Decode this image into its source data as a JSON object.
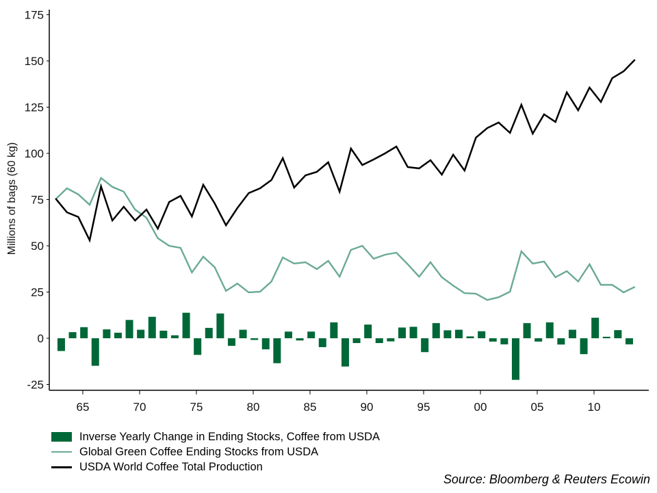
{
  "chart_data": {
    "type": "bar+line",
    "title": "",
    "xlabel": "",
    "ylabel": "Millions of bags (60 kg)",
    "ylim": [
      -30,
      177
    ],
    "yticks": [
      175,
      150,
      125,
      100,
      75,
      50,
      25,
      0,
      -25
    ],
    "ytick_labels": [
      "175",
      "150",
      "125",
      "100",
      "75",
      "50",
      "25",
      "0",
      "-25"
    ],
    "xlim": [
      1962,
      2015.1
    ],
    "xticks": [
      1965,
      1970,
      1975,
      1980,
      1985,
      1990,
      1995,
      2000,
      2005,
      2010
    ],
    "xtick_labels": [
      "65",
      "70",
      "75",
      "80",
      "85",
      "90",
      "95",
      "00",
      "05",
      "10"
    ],
    "grid": false,
    "legend_position": "bottom-left",
    "x": [
      1962.6,
      1963.6,
      1964.6,
      1965.6,
      1966.6,
      1967.6,
      1968.6,
      1969.6,
      1970.6,
      1971.6,
      1972.6,
      1973.6,
      1974.6,
      1975.6,
      1976.6,
      1977.6,
      1978.6,
      1979.6,
      1980.6,
      1981.6,
      1982.6,
      1983.6,
      1984.6,
      1985.6,
      1986.6,
      1987.6,
      1988.6,
      1989.6,
      1990.6,
      1991.6,
      1992.6,
      1993.6,
      1994.6,
      1995.6,
      1996.6,
      1997.6,
      1998.6,
      1999.6,
      2000.6,
      2001.6,
      2002.6,
      2003.6,
      2004.6,
      2005.6,
      2006.6,
      2007.6,
      2008.6,
      2009.6,
      2010.6,
      2011.6,
      2012.6,
      2013.6
    ],
    "series": [
      {
        "name": "Inverse Yearly Change in Ending Stocks, Coffee from USDA",
        "kind": "bar",
        "color": "#006838",
        "x_offset": 0.5,
        "values": [
          -6.9,
          3.3,
          6.0,
          -14.9,
          4.8,
          3.0,
          9.9,
          4.6,
          11.6,
          4.1,
          1.6,
          13.8,
          -9.0,
          5.6,
          13.4,
          -4.1,
          4.6,
          -0.9,
          -6.0,
          -13.5,
          3.6,
          -1.2,
          3.6,
          -4.8,
          8.6,
          -15.3,
          -2.6,
          7.4,
          -2.6,
          -1.7,
          5.8,
          6.2,
          -7.5,
          8.2,
          4.3,
          4.6,
          1.0,
          3.8,
          -1.8,
          -3.3,
          -22.5,
          8.2,
          -1.8,
          8.6,
          -3.4,
          4.6,
          -8.6,
          11.1,
          0.8,
          4.4,
          -3.3,
          0.0
        ]
      },
      {
        "name": "Global Green Coffee Ending Stocks from USDA",
        "kind": "line",
        "color": "#6aaa92",
        "values": [
          75.2,
          81.1,
          77.8,
          72.2,
          86.7,
          81.9,
          79.3,
          69.6,
          65.2,
          54.1,
          50.0,
          48.9,
          35.6,
          44.1,
          38.5,
          25.6,
          29.6,
          24.8,
          25.2,
          30.7,
          43.7,
          40.4,
          41.1,
          37.4,
          41.9,
          33.3,
          47.8,
          50.0,
          43.0,
          45.2,
          46.3,
          40.0,
          33.3,
          41.1,
          33.0,
          28.5,
          24.4,
          24.1,
          20.7,
          22.2,
          25.2,
          47.0,
          40.4,
          41.5,
          33.0,
          36.3,
          30.7,
          40.0,
          28.9,
          28.9,
          24.8,
          27.8
        ]
      },
      {
        "name": "USDA World Coffee Total Production",
        "kind": "line",
        "color": "#000000",
        "values": [
          75.6,
          68.1,
          65.6,
          53.0,
          82.2,
          63.7,
          71.1,
          63.7,
          69.6,
          59.3,
          73.7,
          77.0,
          65.9,
          83.0,
          73.0,
          61.1,
          70.4,
          78.5,
          81.1,
          85.6,
          97.4,
          81.5,
          88.1,
          90.0,
          95.2,
          79.3,
          102.6,
          93.7,
          96.7,
          100.0,
          103.7,
          92.6,
          91.9,
          96.3,
          88.5,
          99.3,
          90.7,
          108.5,
          113.7,
          116.7,
          111.1,
          126.3,
          110.7,
          121.1,
          117.0,
          133.0,
          123.3,
          135.6,
          127.8,
          140.7,
          144.4,
          150.7
        ]
      }
    ],
    "source_note": "Source: Bloomberg & Reuters Ecowin"
  },
  "legend": {
    "items": [
      {
        "label": "Inverse Yearly Change in Ending Stocks, Coffee from USDA",
        "color": "#006838",
        "kind": "bar"
      },
      {
        "label": "Global Green Coffee Ending Stocks from USDA",
        "color": "#6aaa92",
        "kind": "line"
      },
      {
        "label": "USDA World Coffee Total Production",
        "color": "#000000",
        "kind": "line"
      }
    ]
  },
  "source": "Source: Bloomberg & Reuters Ecowin"
}
